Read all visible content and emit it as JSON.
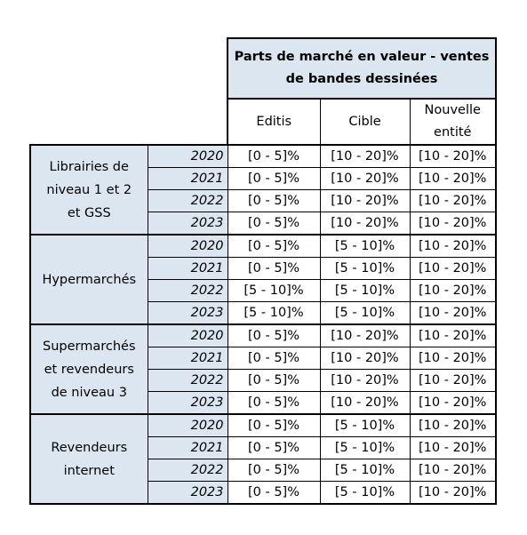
{
  "table": {
    "title": "Parts de marché en valeur - ventes de bandes dessinées",
    "columns": [
      "Editis",
      "Cible",
      "Nouvelle entité"
    ],
    "groups": [
      {
        "label": "Librairies de niveau 1 et 2 et GSS",
        "rows": [
          {
            "year": "2020",
            "values": [
              "[0 - 5]%",
              "[10 - 20]%",
              "[10 - 20]%"
            ]
          },
          {
            "year": "2021",
            "values": [
              "[0 - 5]%",
              "[10 - 20]%",
              "[10 - 20]%"
            ]
          },
          {
            "year": "2022",
            "values": [
              "[0 - 5]%",
              "[10 - 20]%",
              "[10 - 20]%"
            ]
          },
          {
            "year": "2023",
            "values": [
              "[0 - 5]%",
              "[10 - 20]%",
              "[10 - 20]%"
            ]
          }
        ]
      },
      {
        "label": "Hypermarchés",
        "rows": [
          {
            "year": "2020",
            "values": [
              "[0 - 5]%",
              "[5 - 10]%",
              "[10 - 20]%"
            ]
          },
          {
            "year": "2021",
            "values": [
              "[0 - 5]%",
              "[5 - 10]%",
              "[10 - 20]%"
            ]
          },
          {
            "year": "2022",
            "values": [
              "[5 - 10]%",
              "[5 - 10]%",
              "[10 - 20]%"
            ]
          },
          {
            "year": "2023",
            "values": [
              "[5 - 10]%",
              "[5 - 10]%",
              "[10 - 20]%"
            ]
          }
        ]
      },
      {
        "label": "Supermarchés et revendeurs de niveau 3",
        "rows": [
          {
            "year": "2020",
            "values": [
              "[0 - 5]%",
              "[10 - 20]%",
              "[10 - 20]%"
            ]
          },
          {
            "year": "2021",
            "values": [
              "[0 - 5]%",
              "[10 - 20]%",
              "[10 - 20]%"
            ]
          },
          {
            "year": "2022",
            "values": [
              "[0 - 5]%",
              "[10 - 20]%",
              "[10 - 20]%"
            ]
          },
          {
            "year": "2023",
            "values": [
              "[0 - 5]%",
              "[10 - 20]%",
              "[10 - 20]%"
            ]
          }
        ]
      },
      {
        "label": "Revendeurs internet",
        "rows": [
          {
            "year": "2020",
            "values": [
              "[0 - 5]%",
              "[5 - 10]%",
              "[10 - 20]%"
            ]
          },
          {
            "year": "2021",
            "values": [
              "[0 - 5]%",
              "[5 - 10]%",
              "[10 - 20]%"
            ]
          },
          {
            "year": "2022",
            "values": [
              "[0 - 5]%",
              "[5 - 10]%",
              "[10 - 20]%"
            ]
          },
          {
            "year": "2023",
            "values": [
              "[0 - 5]%",
              "[5 - 10]%",
              "[10 - 20]%"
            ]
          }
        ]
      }
    ]
  },
  "colors": {
    "header_fill": "#dce6f1",
    "border": "#000000"
  }
}
